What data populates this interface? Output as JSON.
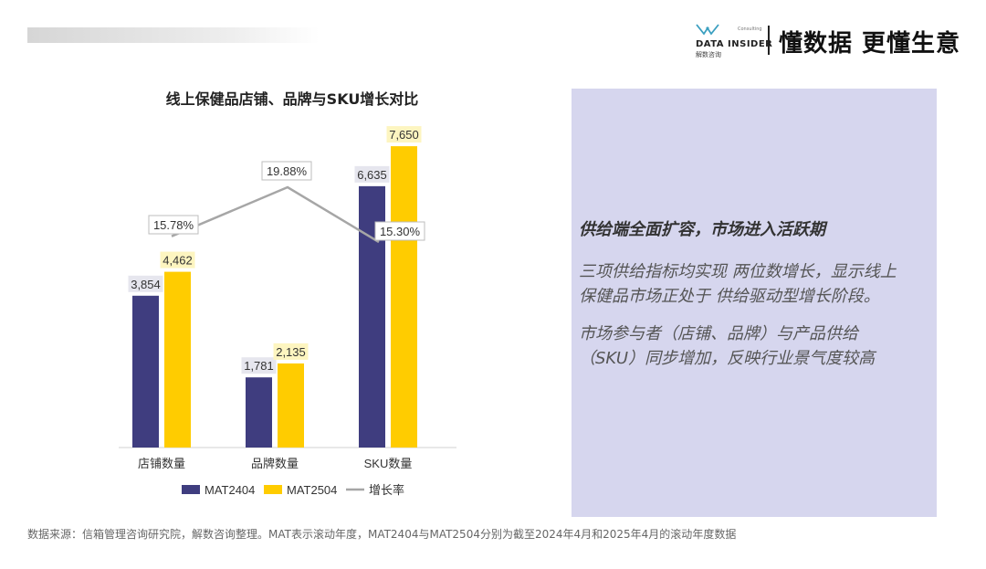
{
  "header": {
    "brand_name": "DATA INSIDER",
    "brand_sub": "解数咨询",
    "brand_consulting": "Consulting",
    "slogan": "懂数据 更懂生意"
  },
  "chart_data": {
    "type": "bar",
    "title": "线上保健品店铺、品牌与SKU增长对比",
    "categories": [
      "店铺数量",
      "品牌数量",
      "SKU数量"
    ],
    "series": [
      {
        "name": "MAT2404",
        "values": [
          3854,
          1781,
          6635
        ],
        "labels": [
          "3,854",
          "1,781",
          "6,635"
        ],
        "color": "#3f3d7f"
      },
      {
        "name": "MAT2504",
        "values": [
          4462,
          2135,
          7650
        ],
        "labels": [
          "4,462",
          "2,135",
          "7,650"
        ],
        "color": "#ffcc00"
      }
    ],
    "growth": {
      "name": "增长率",
      "values": [
        15.78,
        19.88,
        15.3
      ],
      "labels": [
        "15.78%",
        "19.88%",
        "15.30%"
      ],
      "color": "#a6a6a6"
    },
    "ylim": [
      0,
      8000
    ],
    "legend_position": "bottom",
    "grid": false
  },
  "panel": {
    "heading": "供给端全面扩容，市场进入活跃期",
    "lines": [
      "三项供给指标均实现 两位数增长，显示线上",
      "保健品市场正处于 供给驱动型增长阶段。",
      "市场参与者（店铺、品牌）与产品供给",
      "（SKU）同步增加，反映行业景气度较高"
    ]
  },
  "footer": {
    "source": "数据来源：信箱管理咨询研究院，解数咨询整理。MAT表示滚动年度，MAT2404与MAT2504分别为截至2024年4月和2025年4月的滚动年度数据"
  }
}
